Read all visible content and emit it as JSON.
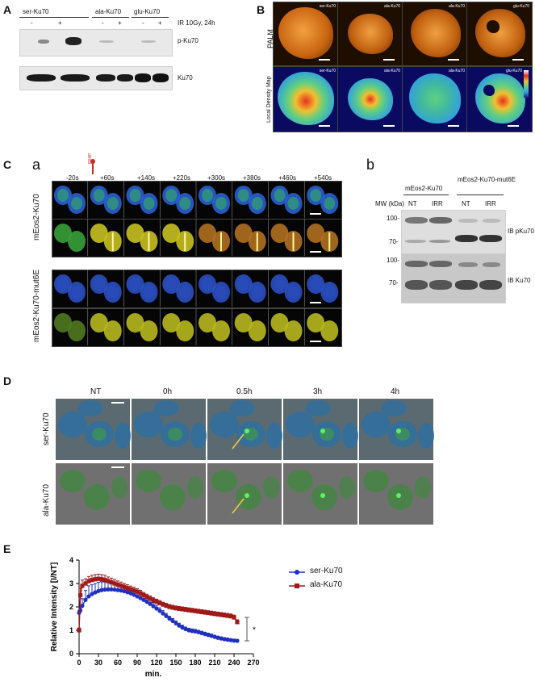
{
  "panelA": {
    "letter": "A",
    "lanes": [
      "ser-Ku70",
      "ala-Ku70",
      "glu-Ku70"
    ],
    "signs": [
      "-",
      "+",
      "-",
      "+",
      "-",
      "+"
    ],
    "treatment": "IR 10Gy, 24h",
    "blot_labels": [
      "p-Ku70",
      "Ku70"
    ]
  },
  "panelB": {
    "letter": "B",
    "row_labels": [
      "PALM",
      "Local Density Map"
    ],
    "tiles": [
      "ser-Ku70",
      "ala-Ku70",
      "ala-Ku70",
      "glu-Ku70"
    ]
  },
  "panelC": {
    "letter": "C",
    "sub_a": "a",
    "sub_b": "b",
    "frap_label": "FRAP",
    "timepoints": [
      "-20s",
      "+60s",
      "+140s",
      "+220s",
      "+300s",
      "+380s",
      "+460s",
      "+540s"
    ],
    "row_labels": [
      "mEos2-Ku70",
      "mEos2-Ku70-mut6E"
    ],
    "blot_groups": [
      "mEos2-Ku70",
      "mEos2-Ku70-mut6E"
    ],
    "blot_lanes": [
      "NT",
      "IRR",
      "NT",
      "IRR"
    ],
    "mw_label": "MW (kDa)",
    "mw_marks": [
      "100-",
      "70-",
      "100-",
      "70-"
    ],
    "blot_labels": [
      "IB pKu70",
      "IB Ku70"
    ]
  },
  "panelD": {
    "letter": "D",
    "timepoints": [
      "NT",
      "0h",
      "0.5h",
      "3h",
      "4h"
    ],
    "row_labels": [
      "ser-Ku70",
      "ala-Ku70"
    ]
  },
  "panelE": {
    "letter": "E",
    "chart_data": {
      "type": "line",
      "ylabel": "Relative Intensity [I/NT]",
      "xlabel": "min.",
      "xlim": [
        0,
        270
      ],
      "ylim": [
        0,
        4
      ],
      "xticks": [
        0,
        30,
        60,
        90,
        120,
        150,
        180,
        210,
        240,
        270
      ],
      "yticks": [
        0,
        1,
        2,
        3,
        4
      ],
      "x": [
        0,
        2,
        5,
        10,
        15,
        20,
        25,
        30,
        35,
        40,
        45,
        50,
        55,
        60,
        65,
        70,
        75,
        80,
        85,
        90,
        95,
        100,
        105,
        110,
        115,
        120,
        125,
        130,
        135,
        140,
        145,
        150,
        155,
        160,
        165,
        170,
        175,
        180,
        185,
        190,
        195,
        200,
        205,
        210,
        215,
        220,
        225,
        230,
        235,
        240,
        245
      ],
      "series": [
        {
          "name": "ser-Ku70",
          "color": "#1f2fbf",
          "marker": "circle",
          "values": [
            1.75,
            1.85,
            2.05,
            2.3,
            2.45,
            2.55,
            2.62,
            2.68,
            2.72,
            2.74,
            2.75,
            2.75,
            2.74,
            2.72,
            2.7,
            2.67,
            2.63,
            2.58,
            2.52,
            2.45,
            2.38,
            2.3,
            2.22,
            2.13,
            2.03,
            1.93,
            1.83,
            1.72,
            1.61,
            1.5,
            1.4,
            1.3,
            1.2,
            1.12,
            1.05,
            1.0,
            0.97,
            0.95,
            0.92,
            0.88,
            0.84,
            0.8,
            0.76,
            0.72,
            0.68,
            0.65,
            0.62,
            0.6,
            0.58,
            0.56,
            0.55
          ],
          "errors": [
            0.1,
            0.15,
            0.3,
            0.4,
            0.45,
            0.4,
            0.38,
            0.37,
            0.35,
            0.32,
            0.3,
            0.3,
            0.28,
            0.27,
            0.25,
            0.25,
            0.24,
            0.22,
            0.21,
            0.2,
            0.19,
            0.18,
            0.17,
            0.16,
            0.15,
            0.14,
            0.13,
            0.12,
            0.11,
            0.1,
            0.1,
            0.1,
            0.1,
            0.1,
            0.09,
            0.09,
            0.09,
            0.09,
            0.08,
            0.08,
            0.08,
            0.08,
            0.08,
            0.07,
            0.07,
            0.07,
            0.07,
            0.07,
            0.06,
            0.06,
            0.06
          ]
        },
        {
          "name": "ala-Ku70",
          "color": "#a01818",
          "marker": "square",
          "values": [
            1.0,
            2.5,
            2.9,
            3.0,
            3.1,
            3.15,
            3.18,
            3.2,
            3.18,
            3.15,
            3.1,
            3.05,
            3.0,
            2.95,
            2.9,
            2.85,
            2.8,
            2.75,
            2.7,
            2.65,
            2.58,
            2.5,
            2.42,
            2.35,
            2.28,
            2.22,
            2.16,
            2.1,
            2.05,
            2.0,
            1.97,
            1.94,
            1.92,
            1.9,
            1.88,
            1.86,
            1.84,
            1.82,
            1.8,
            1.78,
            1.76,
            1.74,
            1.72,
            1.7,
            1.68,
            1.66,
            1.64,
            1.62,
            1.6,
            1.55,
            1.35
          ],
          "errors": [
            0.1,
            0.3,
            0.25,
            0.2,
            0.2,
            0.2,
            0.2,
            0.2,
            0.2,
            0.2,
            0.18,
            0.18,
            0.17,
            0.16,
            0.16,
            0.15,
            0.15,
            0.14,
            0.14,
            0.13,
            0.13,
            0.12,
            0.12,
            0.12,
            0.11,
            0.11,
            0.11,
            0.1,
            0.1,
            0.1,
            0.1,
            0.1,
            0.1,
            0.1,
            0.1,
            0.1,
            0.1,
            0.1,
            0.1,
            0.1,
            0.1,
            0.1,
            0.1,
            0.1,
            0.1,
            0.1,
            0.1,
            0.1,
            0.1,
            0.1,
            0.1
          ]
        }
      ],
      "legend": [
        "ser-Ku70",
        "ala-Ku70"
      ],
      "legend_position": "top-right",
      "significance": "*"
    }
  }
}
